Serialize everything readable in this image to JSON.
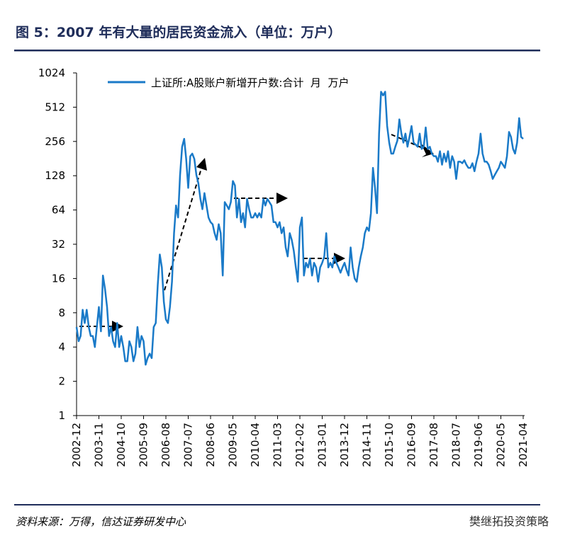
{
  "chart_data": {
    "type": "line",
    "title": "图 5：2007 年有大量的居民资金流入（单位：万户）",
    "source": "资料来源：万得，信达证券研发中心",
    "watermark": "樊继拓投资策略",
    "log_scale": true,
    "ylim": [
      1,
      1024
    ],
    "yticks": [
      1,
      2,
      4,
      8,
      16,
      32,
      64,
      128,
      256,
      512,
      1024
    ],
    "legend": "top",
    "categories": [
      "2002-12",
      null,
      null,
      null,
      null,
      null,
      null,
      null,
      null,
      null,
      null,
      "2003-11",
      null,
      null,
      null,
      null,
      null,
      null,
      null,
      null,
      null,
      null,
      "2004-10",
      null,
      null,
      null,
      null,
      null,
      null,
      null,
      null,
      null,
      null,
      "2005-09",
      null,
      null,
      null,
      null,
      null,
      null,
      null,
      null,
      null,
      null,
      "2006-08",
      null,
      null,
      null,
      null,
      null,
      null,
      null,
      null,
      null,
      null,
      "2007-07",
      null,
      null,
      null,
      null,
      null,
      null,
      null,
      null,
      null,
      null,
      "2008-06",
      null,
      null,
      null,
      null,
      null,
      null,
      null,
      null,
      null,
      null,
      "2009-05",
      null,
      null,
      null,
      null,
      null,
      null,
      null,
      null,
      null,
      null,
      "2010-04",
      null,
      null,
      null,
      null,
      null,
      null,
      null,
      null,
      null,
      null,
      "2011-03",
      null,
      null,
      null,
      null,
      null,
      null,
      null,
      null,
      null,
      null,
      "2012-02",
      null,
      null,
      null,
      null,
      null,
      null,
      null,
      null,
      null,
      null,
      "2013-01",
      null,
      null,
      null,
      null,
      null,
      null,
      null,
      null,
      null,
      null,
      "2013-12",
      null,
      null,
      null,
      null,
      null,
      null,
      null,
      null,
      null,
      null,
      "2014-11",
      null,
      null,
      null,
      null,
      null,
      null,
      null,
      null,
      null,
      null,
      "2015-10",
      null,
      null,
      null,
      null,
      null,
      null,
      null,
      null,
      null,
      null,
      "2016-09",
      null,
      null,
      null,
      null,
      null,
      null,
      null,
      null,
      null,
      null,
      "2017-08",
      null,
      null,
      null,
      null,
      null,
      null,
      null,
      null,
      null,
      null,
      "2018-07",
      null,
      null,
      null,
      null,
      null,
      null,
      null,
      null,
      null,
      null,
      "2019-06",
      null,
      null,
      null,
      null,
      null,
      null,
      null,
      null,
      null,
      null,
      "2020-05",
      null,
      null,
      null,
      null,
      null,
      null,
      null,
      null,
      null,
      null,
      "2021-04"
    ],
    "series": [
      {
        "name": "上证所:A股账户新增开户数:合计  月  万户",
        "color": "#1a7ac8",
        "values": [
          6,
          4.5,
          5,
          8.5,
          6.5,
          8.5,
          6,
          5,
          5,
          4,
          6,
          9,
          5.5,
          17,
          13,
          9,
          5,
          6,
          4.5,
          4,
          6.5,
          4,
          5,
          4,
          3,
          3,
          4.5,
          4,
          3,
          3.5,
          6,
          4,
          5,
          4.5,
          2.8,
          3.2,
          3.5,
          3.2,
          6,
          6.5,
          14,
          26,
          20,
          10,
          7,
          6.5,
          9,
          15,
          40,
          70,
          55,
          130,
          230,
          270,
          180,
          100,
          190,
          200,
          180,
          130,
          110,
          80,
          65,
          90,
          70,
          55,
          50,
          48,
          40,
          35,
          48,
          40,
          17,
          75,
          70,
          65,
          75,
          115,
          105,
          55,
          80,
          50,
          60,
          45,
          80,
          65,
          55,
          55,
          60,
          55,
          60,
          55,
          80,
          70,
          80,
          75,
          70,
          50,
          50,
          45,
          50,
          40,
          45,
          30,
          25,
          40,
          35,
          28,
          20,
          15,
          45,
          55,
          17,
          22,
          20,
          24,
          17,
          22,
          20,
          15,
          20,
          22,
          25,
          40,
          20,
          22,
          20,
          25,
          22,
          20,
          18,
          20,
          22,
          19,
          17,
          30,
          20,
          16,
          15,
          20,
          25,
          30,
          40,
          45,
          42,
          60,
          150,
          100,
          60,
          300,
          700,
          650,
          700,
          350,
          250,
          200,
          200,
          230,
          260,
          400,
          300,
          250,
          300,
          230,
          280,
          350,
          250,
          240,
          230,
          300,
          220,
          230,
          340,
          220,
          230,
          200,
          190,
          190,
          170,
          210,
          160,
          200,
          170,
          210,
          150,
          190,
          170,
          120,
          170,
          170,
          165,
          175,
          160,
          150,
          150,
          165,
          140,
          170,
          200,
          300,
          200,
          170,
          170,
          160,
          140,
          120,
          130,
          140,
          150,
          170,
          160,
          150,
          190,
          310,
          280,
          220,
          200,
          250,
          410,
          280,
          270
        ]
      }
    ]
  }
}
